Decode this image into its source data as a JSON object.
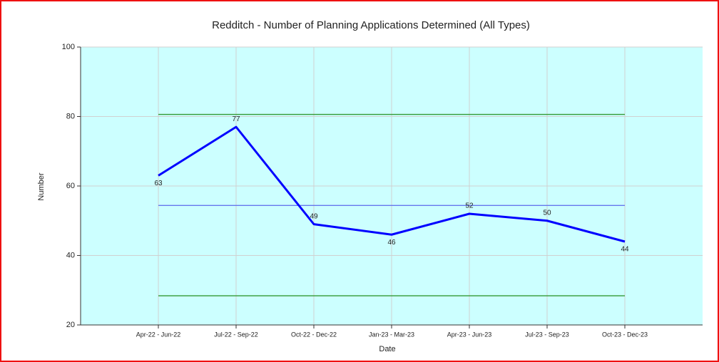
{
  "chart_data": {
    "type": "line",
    "title": "Redditch - Number of Planning Applications Determined (All Types)",
    "x_label": "Date",
    "y_label": "Number",
    "categories": [
      "Apr-22 - Jun-22",
      "Jul-22 - Sep-22",
      "Oct-22 - Dec-22",
      "Jan-23 - Mar-23",
      "Apr-23 - Jun-23",
      "Jul-23 - Sep-23",
      "Oct-23 - Dec-23"
    ],
    "series": [
      {
        "name": "Number",
        "color": "#0000ff",
        "values": [
          63,
          77,
          49,
          46,
          52,
          50,
          44
        ]
      }
    ],
    "reference_lines": [
      {
        "value": 80.6,
        "color": "#339933"
      },
      {
        "value": 54.4,
        "color": "#6677ee"
      },
      {
        "value": 28.4,
        "color": "#339933"
      }
    ],
    "ylim": [
      20,
      100
    ],
    "yticks": [
      20,
      40,
      60,
      80,
      100
    ],
    "grid": true,
    "plot_background": "#ccffff"
  }
}
